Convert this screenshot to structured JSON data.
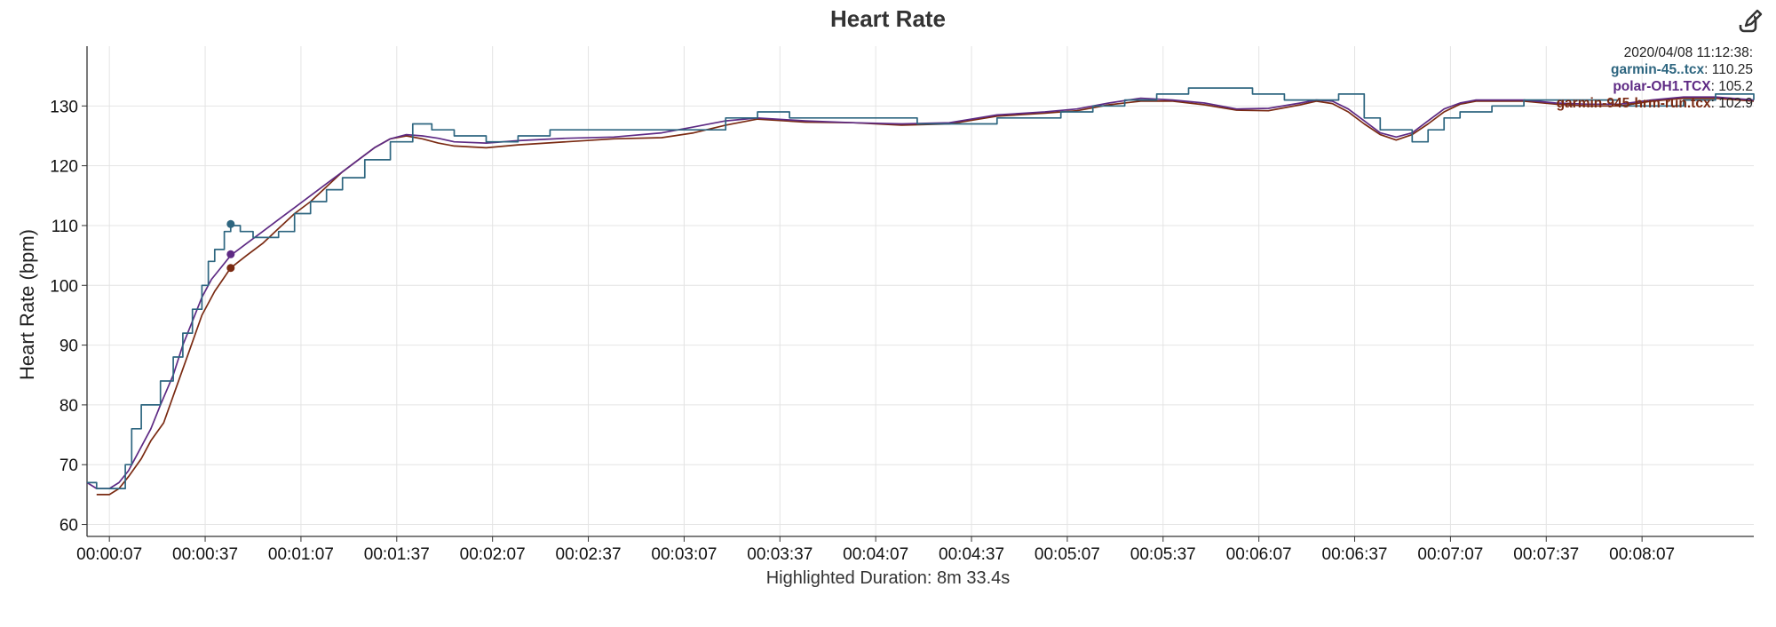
{
  "chart_data": {
    "type": "line",
    "title": "Heart Rate",
    "ylabel": "Heart Rate (bpm)",
    "xlabel": "",
    "ylim": [
      58,
      140
    ],
    "xlim": [
      "00:00:00",
      "00:08:42"
    ],
    "grid": true,
    "yticks": [
      60,
      70,
      80,
      90,
      100,
      110,
      120,
      130
    ],
    "xticks": [
      "00:00:07",
      "00:00:37",
      "00:01:07",
      "00:01:37",
      "00:02:07",
      "00:02:37",
      "00:03:07",
      "00:03:37",
      "00:04:07",
      "00:04:37",
      "00:05:07",
      "00:05:37",
      "00:06:07",
      "00:06:37",
      "00:07:07",
      "00:07:37",
      "00:08:07"
    ],
    "legend_placement": "top-right",
    "legend_time": "2020/04/08 11:12:38:",
    "highlight_x": "00:00:45",
    "series": [
      {
        "name": "garmin-45..tcx",
        "color": "#2e6680",
        "highlight_value": "110.25",
        "step": true,
        "x": [
          "00:00:00",
          "00:00:03",
          "00:00:07",
          "00:00:10",
          "00:00:12",
          "00:00:14",
          "00:00:17",
          "00:00:20",
          "00:00:23",
          "00:00:27",
          "00:00:30",
          "00:00:33",
          "00:00:36",
          "00:00:38",
          "00:00:40",
          "00:00:43",
          "00:00:45",
          "00:00:48",
          "00:00:52",
          "00:00:56",
          "00:01:00",
          "00:01:05",
          "00:01:10",
          "00:01:15",
          "00:01:20",
          "00:01:27",
          "00:01:35",
          "00:01:42",
          "00:01:48",
          "00:01:55",
          "00:02:05",
          "00:02:15",
          "00:02:25",
          "00:02:35",
          "00:02:50",
          "00:03:05",
          "00:03:20",
          "00:03:30",
          "00:03:40",
          "00:03:50",
          "00:04:05",
          "00:04:20",
          "00:04:35",
          "00:04:45",
          "00:04:55",
          "00:05:05",
          "00:05:15",
          "00:05:25",
          "00:05:35",
          "00:05:45",
          "00:05:55",
          "00:06:05",
          "00:06:15",
          "00:06:25",
          "00:06:32",
          "00:06:40",
          "00:06:45",
          "00:06:50",
          "00:06:55",
          "00:07:00",
          "00:07:05",
          "00:07:10",
          "00:07:20",
          "00:07:30",
          "00:07:40",
          "00:07:50",
          "00:08:00",
          "00:08:10",
          "00:08:20",
          "00:08:30",
          "00:08:42"
        ],
        "y": [
          67,
          66,
          66,
          66,
          70,
          76,
          80,
          80,
          84,
          88,
          92,
          96,
          100,
          104,
          106,
          109,
          110,
          109,
          108,
          108,
          109,
          112,
          114,
          116,
          118,
          121,
          124,
          127,
          126,
          125,
          124,
          125,
          126,
          126,
          126,
          126,
          128,
          129,
          128,
          128,
          128,
          127,
          127,
          128,
          128,
          129,
          130,
          131,
          132,
          133,
          133,
          132,
          131,
          131,
          132,
          128,
          126,
          126,
          124,
          126,
          128,
          129,
          130,
          131,
          131,
          131,
          130,
          130,
          131,
          132,
          131
        ]
      },
      {
        "name": "polar-OH1.TCX",
        "color": "#5e2a84",
        "highlight_value": "105.2",
        "step": false,
        "x": [
          "00:00:00",
          "00:00:03",
          "00:00:07",
          "00:00:10",
          "00:00:13",
          "00:00:16",
          "00:00:20",
          "00:00:23",
          "00:00:27",
          "00:00:30",
          "00:00:33",
          "00:00:36",
          "00:00:39",
          "00:00:42",
          "00:00:45",
          "00:00:50",
          "00:00:55",
          "00:01:00",
          "00:01:05",
          "00:01:10",
          "00:01:15",
          "00:01:20",
          "00:01:25",
          "00:01:30",
          "00:01:35",
          "00:01:40",
          "00:01:45",
          "00:01:50",
          "00:01:55",
          "00:02:05",
          "00:02:15",
          "00:02:30",
          "00:02:45",
          "00:03:00",
          "00:03:10",
          "00:03:20",
          "00:03:30",
          "00:03:45",
          "00:04:00",
          "00:04:15",
          "00:04:30",
          "00:04:45",
          "00:05:00",
          "00:05:10",
          "00:05:20",
          "00:05:30",
          "00:05:40",
          "00:05:50",
          "00:06:00",
          "00:06:10",
          "00:06:20",
          "00:06:25",
          "00:06:30",
          "00:06:35",
          "00:06:40",
          "00:06:45",
          "00:06:50",
          "00:06:55",
          "00:07:00",
          "00:07:05",
          "00:07:10",
          "00:07:15",
          "00:07:20",
          "00:07:30",
          "00:07:40",
          "00:07:50",
          "00:08:00",
          "00:08:10",
          "00:08:20",
          "00:08:30",
          "00:08:42"
        ],
        "y": [
          67,
          66,
          66,
          67,
          69,
          72,
          76,
          80,
          85,
          90,
          94,
          98,
          101,
          103,
          105,
          107,
          109,
          111,
          113,
          115,
          117,
          119,
          121,
          123,
          124.5,
          125.2,
          125,
          124.6,
          124,
          123.8,
          124.2,
          124.6,
          124.8,
          125.5,
          126.5,
          127.5,
          128,
          127.5,
          127.2,
          127,
          127.2,
          128.5,
          129,
          129.5,
          130.5,
          131.3,
          131,
          130.5,
          129.5,
          129.6,
          130.5,
          131,
          130.8,
          129.5,
          127.5,
          125.5,
          124.8,
          125.5,
          127.5,
          129.5,
          130.5,
          131,
          131,
          131,
          130.5,
          130.3,
          130.3,
          131,
          131.5,
          131.5,
          131
        ]
      },
      {
        "name": "garmin-945-hrm-run.tcx",
        "color": "#7a2a12",
        "highlight_value": "102.9",
        "step": false,
        "x": [
          "00:00:00",
          "00:00:03",
          "00:00:07",
          "00:00:10",
          "00:00:13",
          "00:00:17",
          "00:00:20",
          "00:00:24",
          "00:00:28",
          "00:00:32",
          "00:00:36",
          "00:00:40",
          "00:00:45",
          "00:00:50",
          "00:00:55",
          "00:01:00",
          "00:01:05",
          "00:01:10",
          "00:01:15",
          "00:01:20",
          "00:01:25",
          "00:01:30",
          "00:01:35",
          "00:01:40",
          "00:01:45",
          "00:01:50",
          "00:01:55",
          "00:02:05",
          "00:02:15",
          "00:02:30",
          "00:02:45",
          "00:03:00",
          "00:03:10",
          "00:03:20",
          "00:03:30",
          "00:03:45",
          "00:04:00",
          "00:04:15",
          "00:04:30",
          "00:04:45",
          "00:05:00",
          "00:05:10",
          "00:05:20",
          "00:05:30",
          "00:05:40",
          "00:05:50",
          "00:06:00",
          "00:06:10",
          "00:06:20",
          "00:06:25",
          "00:06:30",
          "00:06:35",
          "00:06:40",
          "00:06:45",
          "00:06:50",
          "00:06:55",
          "00:07:00",
          "00:07:05",
          "00:07:10",
          "00:07:15",
          "00:07:20",
          "00:07:30",
          "00:07:40",
          "00:07:50",
          "00:08:00",
          "00:08:10",
          "00:08:20",
          "00:08:30",
          "00:08:42"
        ],
        "y": [
          null,
          65,
          65,
          66,
          68,
          71,
          74,
          77,
          83,
          89,
          95,
          99,
          102.9,
          105,
          107,
          109.5,
          112,
          114,
          116.5,
          119,
          121,
          123,
          124.5,
          125,
          124.5,
          123.8,
          123.3,
          123,
          123.5,
          124,
          124.5,
          124.7,
          125.5,
          126.8,
          127.8,
          127.3,
          127.2,
          126.8,
          127,
          128.3,
          128.8,
          129.2,
          130.2,
          130.8,
          130.8,
          130.2,
          129.3,
          129.2,
          130.2,
          130.8,
          130.4,
          129,
          127,
          125.2,
          124.3,
          125.2,
          127,
          129,
          130.3,
          130.8,
          130.8,
          130.8,
          130.3,
          130,
          130,
          130.8,
          131.3,
          131.3,
          130.8
        ]
      }
    ]
  },
  "footer": {
    "highlighted_duration": "Highlighted Duration: 8m 33.4s"
  },
  "toolbar": {
    "edit_icon": "edit-icon"
  }
}
